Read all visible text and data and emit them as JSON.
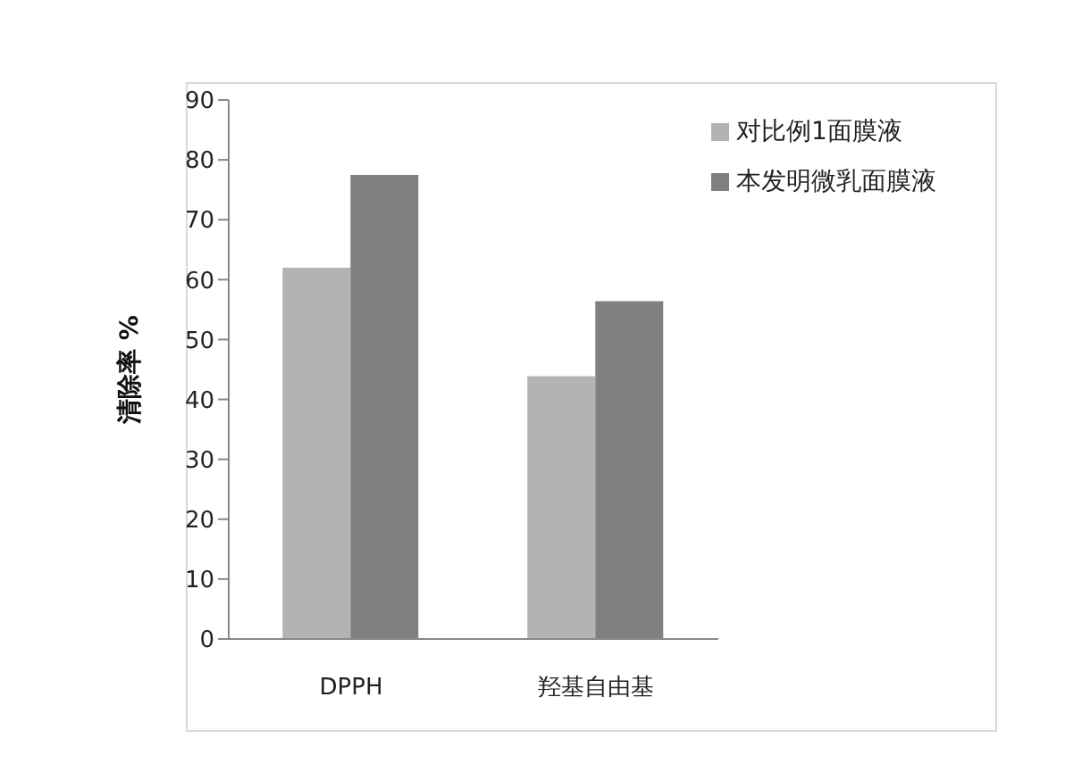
{
  "chart_data": {
    "type": "bar",
    "ylabel": "清除率 %",
    "categories": [
      "DPPH",
      "羟基自由基"
    ],
    "series": [
      {
        "name": "对比例1面膜液",
        "color": "#b3b3b3",
        "values": [
          62,
          43.9
        ]
      },
      {
        "name": "本发明微乳面膜液",
        "color": "#808080",
        "values": [
          77.5,
          56.4
        ]
      }
    ],
    "ylim": [
      0,
      90
    ],
    "yticks": [
      0,
      10,
      20,
      30,
      40,
      50,
      60,
      70,
      80,
      90
    ],
    "grid": false,
    "legend": "top right"
  }
}
